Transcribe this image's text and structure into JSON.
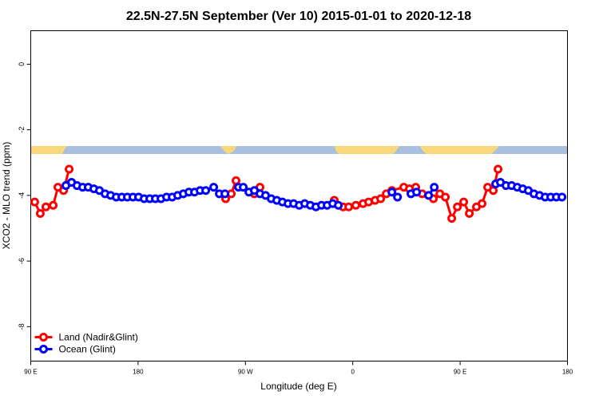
{
  "chart_data": {
    "type": "line",
    "title": "22.5N-27.5N September (Ver 10)   2015-01-01 to 2020-12-18",
    "x_label": "Longitude (deg E)",
    "y_label": "XCO2 - MLO trend (ppm)",
    "xlim": [
      90,
      540
    ],
    "ylim": [
      -9.05,
      1.02
    ],
    "xticks": [
      {
        "value": 90,
        "label": "90 E"
      },
      180,
      {
        "value": 270,
        "label": "90 W"
      },
      {
        "value": 360,
        "label": "0"
      },
      {
        "value": 450,
        "label": "90 E"
      },
      {
        "value": 540,
        "label": "180"
      }
    ],
    "yticks": [
      0,
      -2,
      -4,
      -6,
      -8
    ],
    "legend": "bottom-left",
    "series": [
      {
        "name": "Land (Nadir&Glint)",
        "color": "#ff0000",
        "x": [
          93.3,
          98,
          102.7,
          108.8,
          112.8,
          117.5,
          122.2,
          null,
          253.4,
          258.1,
          262.1,
          null,
          277.5,
          282.2,
          null,
          344.5,
          351.9,
          356.6,
          362.6,
          368.6,
          373.3,
          378.7,
          383.4,
          388.1,
          392.8,
          402.8,
          407.5,
          412.8,
          418.2,
          427.6,
          433,
          437.6,
          443,
          447.7,
          453,
          457.7,
          463.7,
          468.4,
          473.1,
          477.8,
          481.8
        ],
        "values": [
          -4.2,
          -4.55,
          -4.35,
          -4.3,
          -3.75,
          -3.85,
          -3.2,
          null,
          -4.1,
          -3.95,
          -3.55,
          null,
          -3.95,
          -3.75,
          null,
          -4.15,
          -4.35,
          -4.35,
          -4.3,
          -4.25,
          -4.2,
          -4.15,
          -4.1,
          -3.95,
          -3.85,
          -3.75,
          -3.8,
          -3.75,
          -3.95,
          -4.1,
          -3.95,
          -4.05,
          -4.7,
          -4.35,
          -4.2,
          -4.55,
          -4.35,
          -4.25,
          -3.75,
          -3.85,
          -3.2
        ]
      },
      {
        "name": "Ocean (Glint)",
        "color": "#0000ff",
        "x": [
          119.5,
          124.2,
          128.8,
          133.5,
          138.2,
          142.9,
          147.6,
          152.3,
          157,
          161.7,
          166.4,
          171,
          175.7,
          180.4,
          185.1,
          189.8,
          194.5,
          199.2,
          203.9,
          208.6,
          213.2,
          217.9,
          222.6,
          227.3,
          232,
          236.7,
          243.4,
          248.1,
          252.8,
          null,
          264.2,
          268.2,
          272.9,
          277.5,
          282.2,
          286.9,
          291.6,
          296.3,
          301,
          305.7,
          310.4,
          315.1,
          319.7,
          324.4,
          329.1,
          333.8,
          338.5,
          343.2,
          347.9,
          null,
          392.8,
          397.5,
          null,
          408.8,
          413.5,
          null,
          423.6,
          428.3,
          null,
          479.8,
          483.8,
          488.5,
          493.2,
          497.9,
          502.5,
          507.2,
          511.9,
          516.6,
          521.3,
          526,
          530.7,
          535.4
        ],
        "values": [
          -3.7,
          -3.6,
          -3.7,
          -3.75,
          -3.75,
          -3.8,
          -3.85,
          -3.95,
          -4.0,
          -4.05,
          -4.05,
          -4.05,
          -4.05,
          -4.05,
          -4.1,
          -4.1,
          -4.1,
          -4.1,
          -4.05,
          -4.05,
          -4.0,
          -3.95,
          -3.9,
          -3.9,
          -3.85,
          -3.85,
          -3.75,
          -3.95,
          -3.95,
          null,
          -3.75,
          -3.75,
          -3.9,
          -3.85,
          -3.95,
          -4.0,
          -4.1,
          -4.15,
          -4.2,
          -4.25,
          -4.25,
          -4.3,
          -4.25,
          -4.3,
          -4.35,
          -4.3,
          -4.3,
          -4.25,
          -4.3,
          null,
          -3.9,
          -4.05,
          null,
          -3.95,
          -3.9,
          null,
          -4.0,
          -3.75,
          null,
          -3.65,
          -3.6,
          -3.7,
          -3.7,
          -3.75,
          -3.8,
          -3.85,
          -3.95,
          -4.0,
          -4.05,
          -4.05,
          -4.05,
          -4.05
        ]
      }
    ]
  }
}
